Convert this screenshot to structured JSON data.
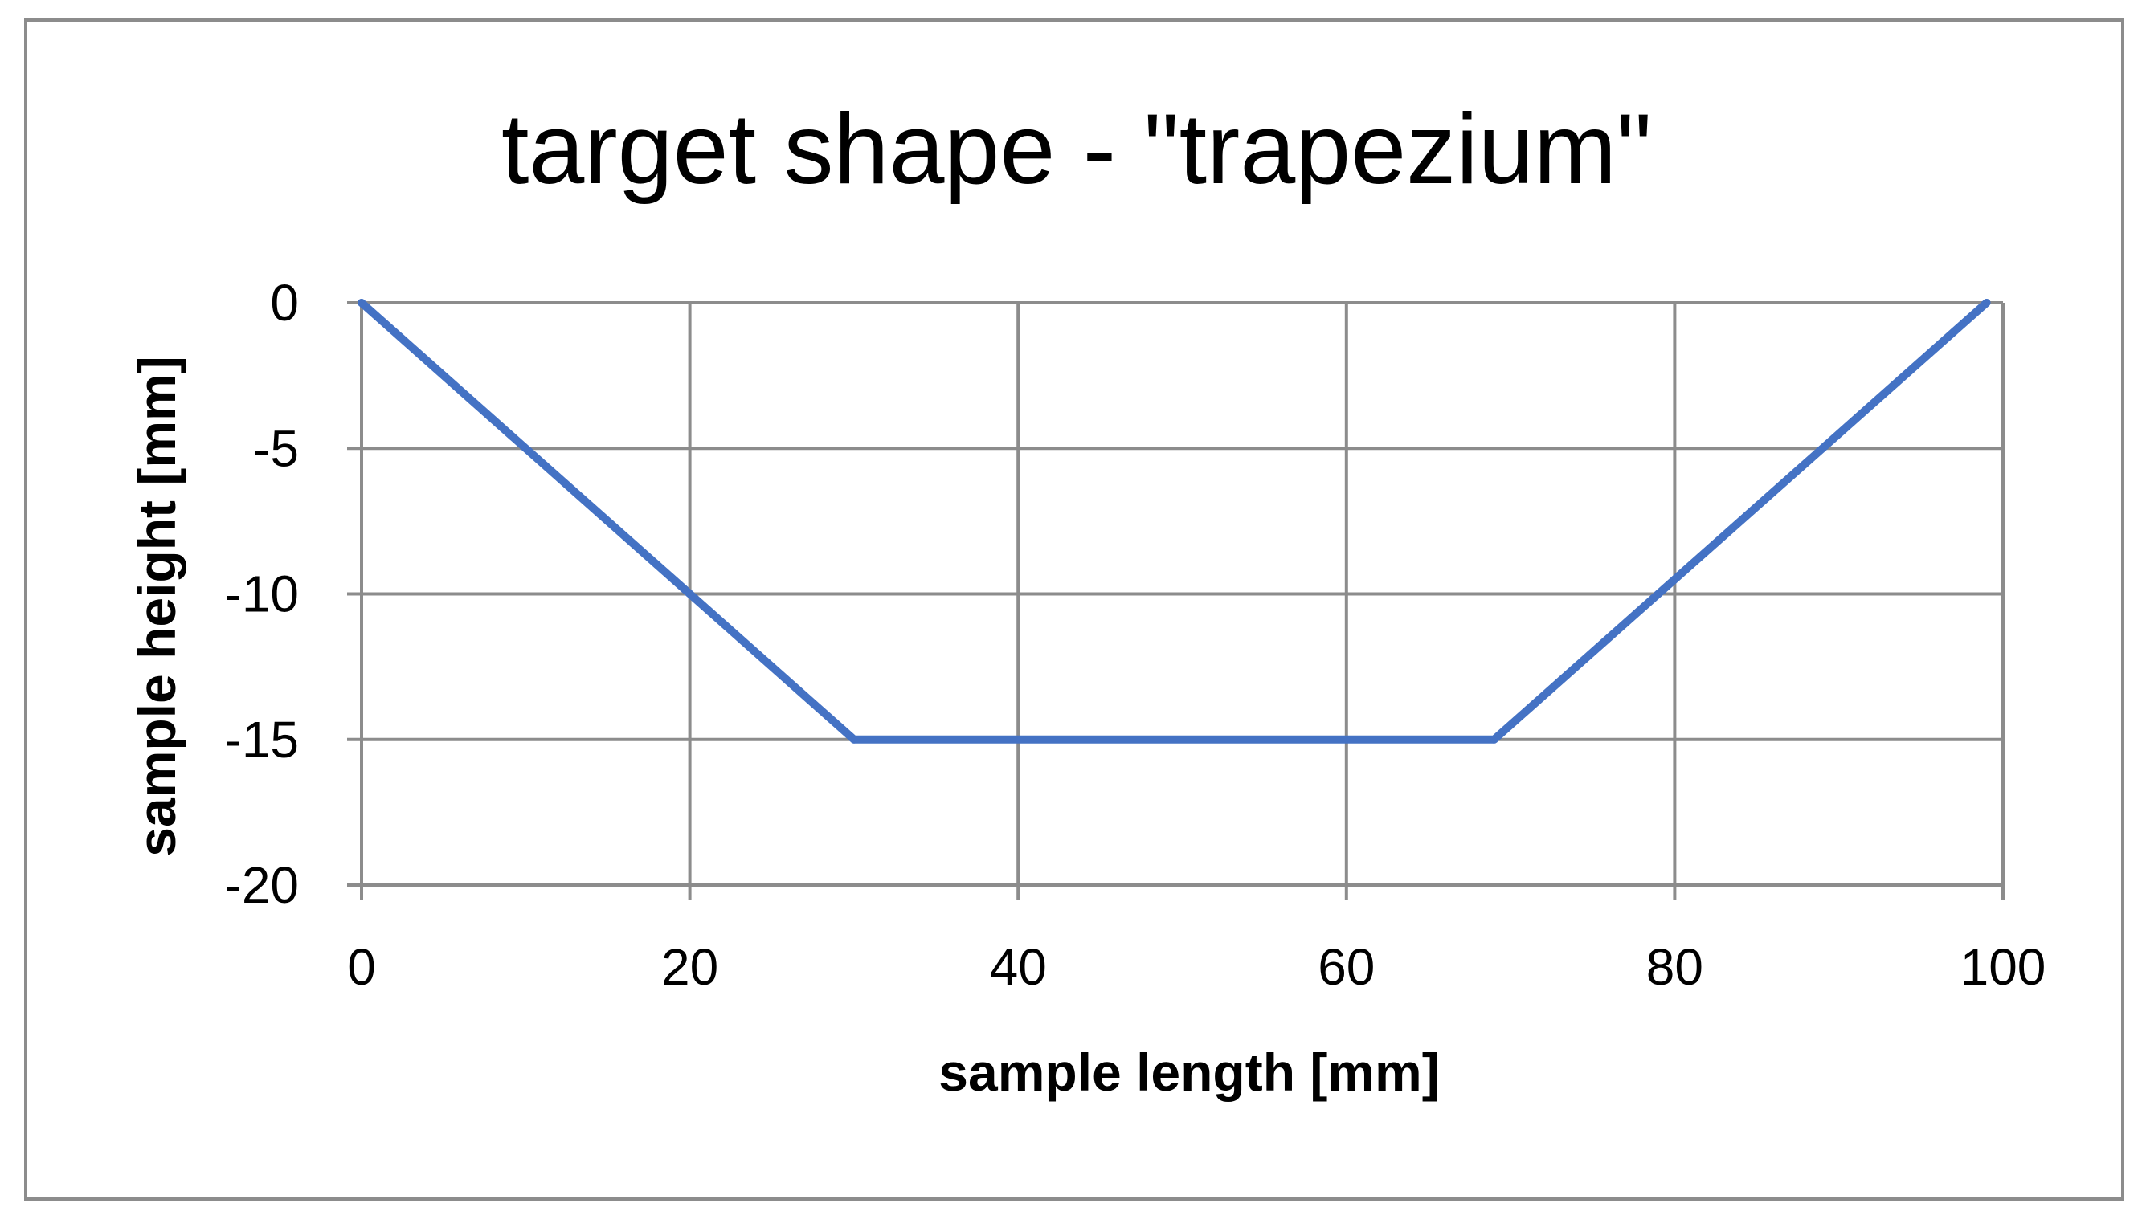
{
  "chart_data": {
    "type": "line",
    "title": "target shape - \"trapezium\"",
    "xlabel": "sample length [mm]",
    "ylabel": "sample height [mm]",
    "xlim": [
      0,
      100
    ],
    "ylim": [
      -20,
      0
    ],
    "x_ticks": [
      0,
      20,
      40,
      60,
      80,
      100
    ],
    "y_ticks": [
      0,
      -5,
      -10,
      -15,
      -20
    ],
    "x_tick_labels": [
      "0",
      "20",
      "40",
      "60",
      "80",
      "100"
    ],
    "y_tick_labels": [
      "0",
      "-5",
      "-10",
      "-15",
      "-20"
    ],
    "grid": true,
    "legend": "none",
    "series": [
      {
        "color": "#4472c4",
        "points": [
          {
            "x": 0,
            "y": 0
          },
          {
            "x": 30,
            "y": -15
          },
          {
            "x": 69,
            "y": -15
          },
          {
            "x": 99,
            "y": 0
          }
        ]
      }
    ]
  }
}
